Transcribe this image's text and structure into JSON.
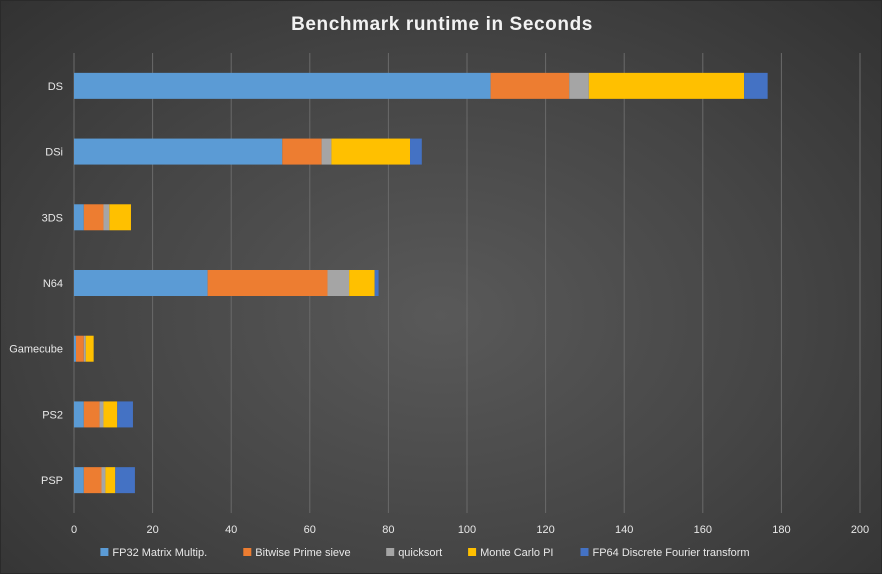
{
  "chart_data": {
    "type": "bar",
    "orientation": "horizontal",
    "stacked": true,
    "title": "Benchmark runtime in Seconds",
    "categories": [
      "DS",
      "DSi",
      "3DS",
      "N64",
      "Gamecube",
      "PS2",
      "PSP"
    ],
    "series": [
      {
        "name": "FP32 Matrix Multip.",
        "color": "#5B9BD5",
        "values": [
          106,
          53,
          2.5,
          34,
          0.5,
          2.5,
          2.5
        ]
      },
      {
        "name": "Bitwise Prime sieve",
        "color": "#ED7D31",
        "values": [
          20,
          10,
          5,
          30.5,
          2,
          4,
          4.5
        ]
      },
      {
        "name": "quicksort",
        "color": "#A5A5A5",
        "values": [
          5,
          2.5,
          1.5,
          5.5,
          0.5,
          1,
          1
        ]
      },
      {
        "name": "Monte Carlo PI",
        "color": "#FFC000",
        "values": [
          39.5,
          20,
          5.5,
          6.5,
          2,
          3.5,
          2.5
        ]
      },
      {
        "name": "FP64 Discrete Fourier transform",
        "color": "#4472C4",
        "values": [
          6,
          3,
          0,
          1,
          0,
          4,
          5
        ]
      }
    ],
    "xlim": [
      0,
      200
    ],
    "xticks": [
      0,
      20,
      40,
      60,
      80,
      100,
      120,
      140,
      160,
      180,
      200
    ],
    "grid": "vertical",
    "legend": "bottom"
  }
}
